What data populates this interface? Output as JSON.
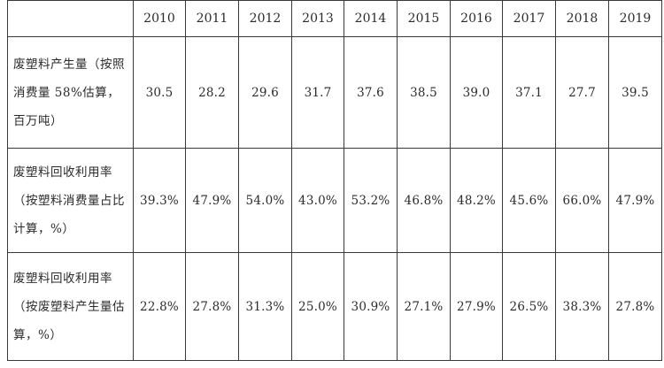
{
  "table": {
    "corner": "",
    "years": [
      "2010",
      "2011",
      "2012",
      "2013",
      "2014",
      "2015",
      "2016",
      "2017",
      "2018",
      "2019"
    ],
    "rows": [
      {
        "label": "废塑料产生量（按照消费量 58%估算，百万吨）",
        "values": [
          "30.5",
          "28.2",
          "29.6",
          "31.7",
          "37.6",
          "38.5",
          "39.0",
          "37.1",
          "27.7",
          "39.5"
        ]
      },
      {
        "label": "废塑料回收利用率（按塑料消费量占比计算，%）",
        "values": [
          "39.3%",
          "47.9%",
          "54.0%",
          "43.0%",
          "53.2%",
          "46.8%",
          "48.2%",
          "45.6%",
          "66.0%",
          "47.9%"
        ]
      },
      {
        "label": "废塑料回收利用率（按废塑料产生量估算，%）",
        "values": [
          "22.8%",
          "27.8%",
          "31.3%",
          "25.0%",
          "30.9%",
          "27.1%",
          "27.9%",
          "26.5%",
          "38.3%",
          "27.8%"
        ]
      }
    ]
  }
}
